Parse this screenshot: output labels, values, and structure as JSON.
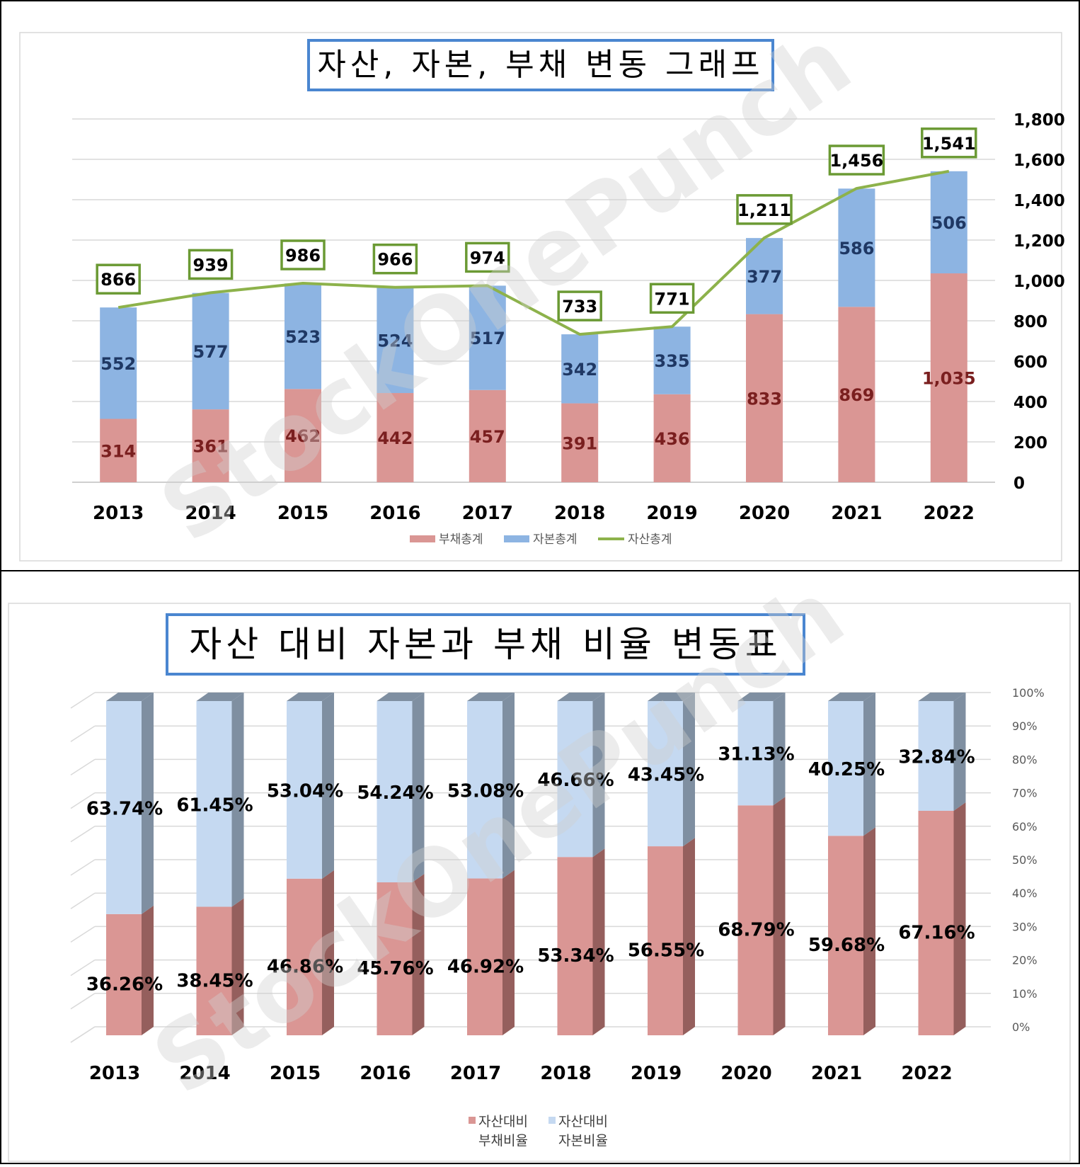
{
  "watermark": "StockOnePunch",
  "colors": {
    "debt": "#DA9694",
    "debt_side": "#955F5D",
    "equity": "#8DB4E2",
    "equity_light": "#C5D9F1",
    "equity_side": "#7F8FA1",
    "assets_line": "#8DB24B",
    "title_border": "#4A86D0",
    "label_border": "#6B9A34",
    "debt_label": "#7A1F1F",
    "equity_label": "#1F3864"
  },
  "chart_data": [
    {
      "type": "bar",
      "stacked": true,
      "title": "자산, 자본, 부채 변동 그래프",
      "categories": [
        "2013",
        "2014",
        "2015",
        "2016",
        "2017",
        "2018",
        "2019",
        "2020",
        "2021",
        "2022"
      ],
      "series": [
        {
          "name": "부채총계",
          "kind": "bar",
          "values": [
            314,
            361,
            462,
            442,
            457,
            391,
            436,
            833,
            869,
            1035
          ],
          "labels": [
            "314",
            "361",
            "462",
            "442",
            "457",
            "391",
            "436",
            "833",
            "869",
            "1,035"
          ]
        },
        {
          "name": "자본총계",
          "kind": "bar",
          "values": [
            552,
            577,
            523,
            524,
            517,
            342,
            335,
            377,
            586,
            506
          ],
          "labels": [
            "552",
            "577",
            "523",
            "524",
            "517",
            "342",
            "335",
            "377",
            "586",
            "506"
          ]
        },
        {
          "name": "자산총계",
          "kind": "line",
          "values": [
            866,
            939,
            986,
            966,
            974,
            733,
            771,
            1211,
            1456,
            1541
          ],
          "labels": [
            "866",
            "939",
            "986",
            "966",
            "974",
            "733",
            "771",
            "1,211",
            "1,456",
            "1,541"
          ]
        }
      ],
      "ylim": [
        0,
        1800
      ],
      "yticks": [
        "0",
        "200",
        "400",
        "600",
        "800",
        "1,000",
        "1,200",
        "1,400",
        "1,600",
        "1,800"
      ],
      "y_axis_side": "right",
      "grid": true,
      "legend": "bottom"
    },
    {
      "type": "bar",
      "stacked": true,
      "percent": true,
      "style": "3d",
      "title": "자산 대비 자본과 부채 비율 변동표",
      "categories": [
        "2013",
        "2014",
        "2015",
        "2016",
        "2017",
        "2018",
        "2019",
        "2020",
        "2021",
        "2022"
      ],
      "series": [
        {
          "name": "자산대비 부채비율",
          "name_lines": [
            "자산대비",
            "부채비율"
          ],
          "values": [
            36.26,
            38.45,
            46.86,
            45.76,
            46.92,
            53.34,
            56.55,
            68.79,
            59.68,
            67.16
          ],
          "labels": [
            "36.26%",
            "38.45%",
            "46.86%",
            "45.76%",
            "46.92%",
            "53.34%",
            "56.55%",
            "68.79%",
            "59.68%",
            "67.16%"
          ]
        },
        {
          "name": "자산대비 자본비율",
          "name_lines": [
            "자산대비",
            "자본비율"
          ],
          "values": [
            63.74,
            61.45,
            53.04,
            54.24,
            53.08,
            46.66,
            43.45,
            31.13,
            40.25,
            32.84
          ],
          "labels": [
            "63.74%",
            "61.45%",
            "53.04%",
            "54.24%",
            "53.08%",
            "46.66%",
            "43.45%",
            "31.13%",
            "40.25%",
            "32.84%"
          ]
        }
      ],
      "ylim": [
        0,
        100
      ],
      "yticks": [
        "0%",
        "10%",
        "20%",
        "30%",
        "40%",
        "50%",
        "60%",
        "70%",
        "80%",
        "90%",
        "100%"
      ],
      "y_axis_side": "right",
      "grid": true,
      "legend": "bottom"
    }
  ]
}
